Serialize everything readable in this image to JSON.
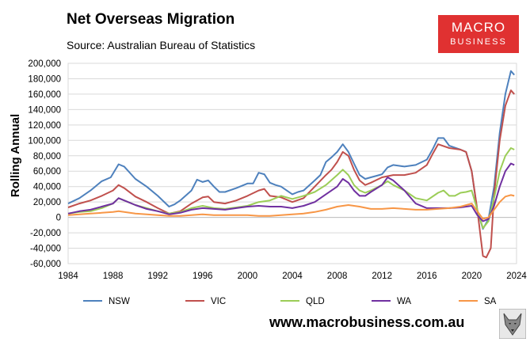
{
  "title": "Net Overseas Migration",
  "subtitle": "Source: Australian Bureau of Statistics",
  "logo": {
    "line1": "MACRO",
    "line2": "BUSINESS"
  },
  "website": "www.macrobusiness.com.au",
  "mascot_icon": "wolf-mascot-icon",
  "chart_data": {
    "type": "line",
    "title": "Net Overseas Migration",
    "xlabel": "",
    "ylabel": "Rolling Annual",
    "xlim": [
      1984,
      2024
    ],
    "ylim": [
      -60000,
      200000
    ],
    "x_ticks": [
      1984,
      1988,
      1992,
      1996,
      2000,
      2004,
      2008,
      2012,
      2016,
      2020,
      2024
    ],
    "y_ticks": [
      -60000,
      -40000,
      -20000,
      0,
      20000,
      40000,
      60000,
      80000,
      100000,
      120000,
      140000,
      160000,
      180000,
      200000
    ],
    "y_tick_labels": [
      "-60,000",
      "-40,000",
      "-20,000",
      "0",
      "20,000",
      "40,000",
      "60,000",
      "80,000",
      "100,000",
      "120,000",
      "140,000",
      "160,000",
      "180,000",
      "200,000"
    ],
    "x_tick_labels": [
      "1984",
      "1988",
      "1992",
      "1996",
      "2000",
      "2004",
      "2008",
      "2012",
      "2016",
      "2020",
      "2024"
    ],
    "grid": true,
    "legend_position": "bottom",
    "series": [
      {
        "name": "NSW",
        "color": "#4e81bd",
        "points": [
          [
            1984,
            18000
          ],
          [
            1985,
            25000
          ],
          [
            1986,
            35000
          ],
          [
            1987,
            47000
          ],
          [
            1987.8,
            52000
          ],
          [
            1988.5,
            69000
          ],
          [
            1989,
            66000
          ],
          [
            1990,
            50000
          ],
          [
            1991,
            40000
          ],
          [
            1992,
            28000
          ],
          [
            1993,
            14000
          ],
          [
            1993.5,
            17000
          ],
          [
            1994,
            22000
          ],
          [
            1995,
            35000
          ],
          [
            1995.5,
            49000
          ],
          [
            1996,
            46000
          ],
          [
            1996.5,
            48000
          ],
          [
            1997,
            40000
          ],
          [
            1997.5,
            33000
          ],
          [
            1998,
            33000
          ],
          [
            1999,
            38000
          ],
          [
            2000,
            44000
          ],
          [
            2000.5,
            44000
          ],
          [
            2001,
            58000
          ],
          [
            2001.5,
            56000
          ],
          [
            2002,
            45000
          ],
          [
            2002.5,
            42000
          ],
          [
            2003,
            40000
          ],
          [
            2003.5,
            35000
          ],
          [
            2004,
            30000
          ],
          [
            2004.5,
            33000
          ],
          [
            2005,
            35000
          ],
          [
            2006,
            48000
          ],
          [
            2006.5,
            55000
          ],
          [
            2007,
            72000
          ],
          [
            2007.5,
            78000
          ],
          [
            2008,
            85000
          ],
          [
            2008.5,
            95000
          ],
          [
            2009,
            85000
          ],
          [
            2009.5,
            70000
          ],
          [
            2010,
            55000
          ],
          [
            2010.5,
            50000
          ],
          [
            2011,
            52000
          ],
          [
            2011.5,
            54000
          ],
          [
            2012,
            56000
          ],
          [
            2012.5,
            65000
          ],
          [
            2013,
            68000
          ],
          [
            2013.5,
            67000
          ],
          [
            2014,
            66000
          ],
          [
            2015,
            68000
          ],
          [
            2016,
            75000
          ],
          [
            2016.5,
            88000
          ],
          [
            2017,
            103000
          ],
          [
            2017.5,
            103000
          ],
          [
            2018,
            93000
          ],
          [
            2019,
            88000
          ],
          [
            2019.5,
            85000
          ],
          [
            2020,
            60000
          ],
          [
            2020.5,
            8000
          ],
          [
            2020.8,
            -5000
          ],
          [
            2021,
            -15000
          ],
          [
            2021.5,
            -2000
          ],
          [
            2022,
            40000
          ],
          [
            2022.5,
            110000
          ],
          [
            2023,
            160000
          ],
          [
            2023.5,
            190000
          ],
          [
            2023.8,
            185000
          ]
        ]
      },
      {
        "name": "VIC",
        "color": "#c0504d",
        "points": [
          [
            1984,
            13000
          ],
          [
            1985,
            18000
          ],
          [
            1986,
            22000
          ],
          [
            1987,
            28000
          ],
          [
            1988,
            35000
          ],
          [
            1988.5,
            42000
          ],
          [
            1989,
            38000
          ],
          [
            1990,
            27000
          ],
          [
            1991,
            20000
          ],
          [
            1992,
            12000
          ],
          [
            1993,
            5000
          ],
          [
            1994,
            8000
          ],
          [
            1995,
            18000
          ],
          [
            1996,
            26000
          ],
          [
            1996.5,
            27000
          ],
          [
            1997,
            20000
          ],
          [
            1998,
            18000
          ],
          [
            1999,
            22000
          ],
          [
            2000,
            28000
          ],
          [
            2001,
            35000
          ],
          [
            2001.5,
            37000
          ],
          [
            2002,
            28000
          ],
          [
            2003,
            26000
          ],
          [
            2004,
            20000
          ],
          [
            2005,
            25000
          ],
          [
            2006,
            40000
          ],
          [
            2007,
            55000
          ],
          [
            2007.5,
            62000
          ],
          [
            2008,
            72000
          ],
          [
            2008.5,
            85000
          ],
          [
            2009,
            80000
          ],
          [
            2009.5,
            62000
          ],
          [
            2010,
            48000
          ],
          [
            2010.5,
            42000
          ],
          [
            2011,
            45000
          ],
          [
            2012,
            52000
          ],
          [
            2013,
            55000
          ],
          [
            2014,
            55000
          ],
          [
            2015,
            58000
          ],
          [
            2016,
            68000
          ],
          [
            2016.5,
            82000
          ],
          [
            2017,
            95000
          ],
          [
            2018,
            90000
          ],
          [
            2019,
            88000
          ],
          [
            2019.5,
            85000
          ],
          [
            2020,
            60000
          ],
          [
            2020.5,
            10000
          ],
          [
            2021,
            -50000
          ],
          [
            2021.3,
            -52000
          ],
          [
            2021.7,
            -40000
          ],
          [
            2022,
            30000
          ],
          [
            2022.5,
            100000
          ],
          [
            2023,
            145000
          ],
          [
            2023.5,
            165000
          ],
          [
            2023.8,
            160000
          ]
        ]
      },
      {
        "name": "QLD",
        "color": "#9bcd57",
        "points": [
          [
            1984,
            5000
          ],
          [
            1985,
            7000
          ],
          [
            1986,
            8000
          ],
          [
            1987,
            12000
          ],
          [
            1988,
            18000
          ],
          [
            1988.5,
            25000
          ],
          [
            1989,
            22000
          ],
          [
            1990,
            16000
          ],
          [
            1991,
            12000
          ],
          [
            1992,
            8000
          ],
          [
            1993,
            5000
          ],
          [
            1994,
            7000
          ],
          [
            1995,
            12000
          ],
          [
            1996,
            15000
          ],
          [
            1997,
            12000
          ],
          [
            1998,
            11000
          ],
          [
            1999,
            13000
          ],
          [
            2000,
            15000
          ],
          [
            2001,
            20000
          ],
          [
            2002,
            22000
          ],
          [
            2003,
            28000
          ],
          [
            2004,
            24000
          ],
          [
            2005,
            28000
          ],
          [
            2006,
            33000
          ],
          [
            2007,
            42000
          ],
          [
            2008,
            55000
          ],
          [
            2008.5,
            62000
          ],
          [
            2009,
            55000
          ],
          [
            2009.5,
            42000
          ],
          [
            2010,
            35000
          ],
          [
            2010.5,
            32000
          ],
          [
            2011,
            35000
          ],
          [
            2012,
            42000
          ],
          [
            2012.5,
            47000
          ],
          [
            2013,
            42000
          ],
          [
            2014,
            35000
          ],
          [
            2015,
            25000
          ],
          [
            2016,
            22000
          ],
          [
            2017,
            32000
          ],
          [
            2017.5,
            35000
          ],
          [
            2018,
            28000
          ],
          [
            2018.5,
            28000
          ],
          [
            2019,
            32000
          ],
          [
            2019.5,
            33000
          ],
          [
            2020,
            35000
          ],
          [
            2020.5,
            10000
          ],
          [
            2021,
            -14000
          ],
          [
            2021.5,
            -5000
          ],
          [
            2022,
            25000
          ],
          [
            2022.5,
            60000
          ],
          [
            2023,
            80000
          ],
          [
            2023.5,
            90000
          ],
          [
            2023.8,
            88000
          ]
        ]
      },
      {
        "name": "WA",
        "color": "#7030a0",
        "points": [
          [
            1984,
            5000
          ],
          [
            1985,
            8000
          ],
          [
            1986,
            10000
          ],
          [
            1987,
            14000
          ],
          [
            1988,
            18000
          ],
          [
            1988.5,
            25000
          ],
          [
            1989,
            22000
          ],
          [
            1990,
            16000
          ],
          [
            1991,
            11000
          ],
          [
            1992,
            8000
          ],
          [
            1993,
            4000
          ],
          [
            1994,
            6000
          ],
          [
            1995,
            10000
          ],
          [
            1996,
            12000
          ],
          [
            1997,
            11000
          ],
          [
            1998,
            10000
          ],
          [
            1999,
            12000
          ],
          [
            2000,
            14000
          ],
          [
            2001,
            15000
          ],
          [
            2002,
            14000
          ],
          [
            2003,
            14000
          ],
          [
            2004,
            12000
          ],
          [
            2005,
            15000
          ],
          [
            2006,
            20000
          ],
          [
            2007,
            30000
          ],
          [
            2008,
            40000
          ],
          [
            2008.5,
            50000
          ],
          [
            2009,
            45000
          ],
          [
            2009.5,
            35000
          ],
          [
            2010,
            28000
          ],
          [
            2010.5,
            28000
          ],
          [
            2011,
            33000
          ],
          [
            2012,
            42000
          ],
          [
            2012.5,
            52000
          ],
          [
            2013,
            48000
          ],
          [
            2014,
            35000
          ],
          [
            2015,
            18000
          ],
          [
            2016,
            12000
          ],
          [
            2017,
            12000
          ],
          [
            2018,
            12000
          ],
          [
            2019,
            13000
          ],
          [
            2020,
            15000
          ],
          [
            2020.5,
            3000
          ],
          [
            2021,
            -5000
          ],
          [
            2021.5,
            -2000
          ],
          [
            2022,
            15000
          ],
          [
            2022.5,
            40000
          ],
          [
            2023,
            60000
          ],
          [
            2023.5,
            70000
          ],
          [
            2023.8,
            68000
          ]
        ]
      },
      {
        "name": "SA",
        "color": "#f79646",
        "points": [
          [
            1984,
            3000
          ],
          [
            1985,
            4000
          ],
          [
            1986,
            5000
          ],
          [
            1987,
            6000
          ],
          [
            1988,
            7000
          ],
          [
            1988.5,
            8000
          ],
          [
            1989,
            7000
          ],
          [
            1990,
            5000
          ],
          [
            1991,
            4000
          ],
          [
            1992,
            3000
          ],
          [
            1993,
            2000
          ],
          [
            1994,
            2000
          ],
          [
            1995,
            3000
          ],
          [
            1996,
            4000
          ],
          [
            1997,
            3000
          ],
          [
            1998,
            3000
          ],
          [
            1999,
            3000
          ],
          [
            2000,
            3000
          ],
          [
            2001,
            2000
          ],
          [
            2002,
            2000
          ],
          [
            2003,
            3000
          ],
          [
            2004,
            4000
          ],
          [
            2005,
            5000
          ],
          [
            2006,
            7000
          ],
          [
            2007,
            10000
          ],
          [
            2008,
            14000
          ],
          [
            2009,
            16000
          ],
          [
            2010,
            14000
          ],
          [
            2011,
            11000
          ],
          [
            2012,
            11000
          ],
          [
            2013,
            12000
          ],
          [
            2014,
            11000
          ],
          [
            2015,
            10000
          ],
          [
            2016,
            10000
          ],
          [
            2017,
            11000
          ],
          [
            2018,
            12000
          ],
          [
            2019,
            14000
          ],
          [
            2020,
            18000
          ],
          [
            2020.5,
            8000
          ],
          [
            2021,
            -2000
          ],
          [
            2021.5,
            0
          ],
          [
            2022,
            10000
          ],
          [
            2022.5,
            20000
          ],
          [
            2023,
            27000
          ],
          [
            2023.5,
            29000
          ],
          [
            2023.8,
            28000
          ]
        ]
      }
    ]
  }
}
